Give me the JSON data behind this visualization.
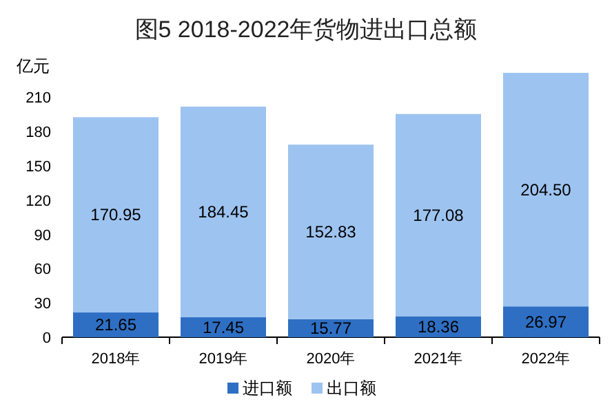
{
  "chart_data": {
    "type": "bar",
    "title": "图5  2018-2022年货物进出口总额",
    "ylabel": "亿元",
    "categories": [
      "2018年",
      "2019年",
      "2020年",
      "2021年",
      "2022年"
    ],
    "stacked": true,
    "legend": "bottom",
    "grid": false,
    "ylim": [
      0,
      235
    ],
    "yticks": [
      0,
      30,
      60,
      90,
      120,
      150,
      180,
      210
    ],
    "series": [
      {
        "name": "进口额",
        "color": "#2e6fc4",
        "values": [
          21.65,
          17.45,
          15.77,
          18.36,
          26.97
        ],
        "value_labels": [
          "21.65",
          "17.45",
          "15.77",
          "18.36",
          "26.97"
        ]
      },
      {
        "name": "出口额",
        "color": "#9dc3f0",
        "values": [
          170.95,
          184.45,
          152.83,
          177.08,
          204.5
        ],
        "value_labels": [
          "170.95",
          "184.45",
          "152.83",
          "177.08",
          "204.50"
        ]
      }
    ]
  }
}
